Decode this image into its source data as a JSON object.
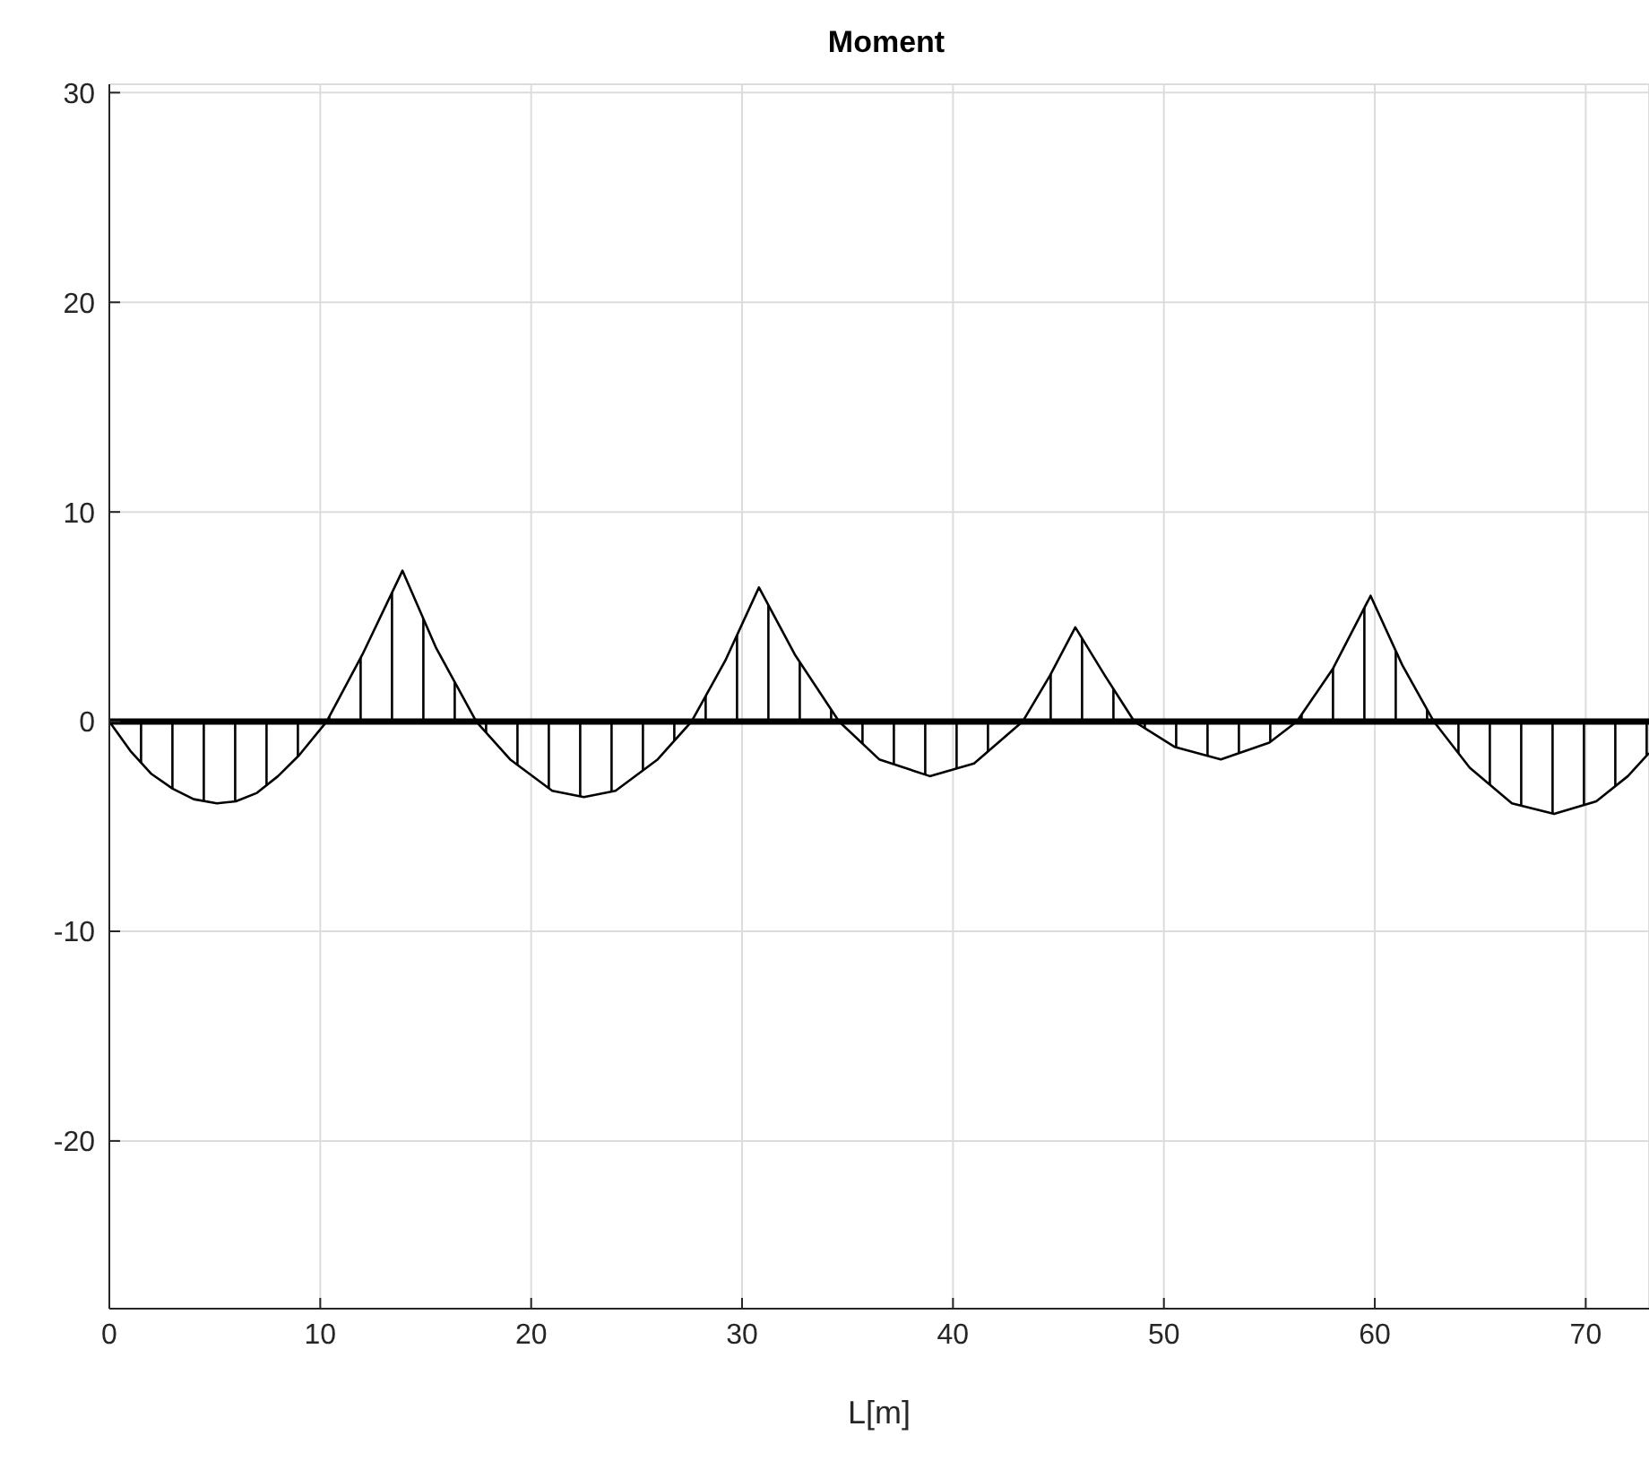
{
  "chart_data": {
    "type": "area",
    "title": "Moment",
    "xlabel": "L[m]",
    "x": [
      0,
      1,
      2,
      3,
      4,
      5.1,
      6,
      7,
      8,
      9,
      10.3,
      12,
      13.9,
      15.5,
      17.4,
      19,
      21,
      22.5,
      24,
      26,
      27.6,
      29.2,
      30.8,
      32.5,
      34.6,
      36.5,
      38.9,
      41,
      43.3,
      44.6,
      45.8,
      47.2,
      48.6,
      50.5,
      52.7,
      55,
      56.3,
      58,
      59.8,
      61.3,
      62.8,
      64.5,
      66.5,
      68.5,
      70.5,
      72,
      73
    ],
    "series": [
      {
        "color": "#000000",
        "values": [
          0,
          -1.4,
          -2.5,
          -3.2,
          -3.7,
          -3.9,
          -3.8,
          -3.4,
          -2.6,
          -1.6,
          0,
          3.2,
          7.2,
          3.5,
          0,
          -1.8,
          -3.3,
          -3.6,
          -3.3,
          -1.8,
          0,
          2.9,
          6.4,
          3.2,
          0,
          -1.8,
          -2.6,
          -2.0,
          0,
          2.2,
          4.5,
          2.2,
          0,
          -1.2,
          -1.8,
          -1.0,
          0,
          2.5,
          6.0,
          2.7,
          0,
          -2.2,
          -3.9,
          -4.4,
          -3.8,
          -2.6,
          -1.5
        ]
      }
    ],
    "xlim": [
      0,
      73
    ],
    "xticks": [
      0,
      10,
      20,
      30,
      40,
      50,
      60,
      70
    ],
    "ylim": [
      -28,
      30.4
    ],
    "yticks": [
      -20,
      -10,
      0,
      10,
      20,
      30
    ],
    "ref_lines": [
      {
        "axis": "y",
        "value": 0,
        "color": "#000000"
      }
    ],
    "grid": true
  }
}
